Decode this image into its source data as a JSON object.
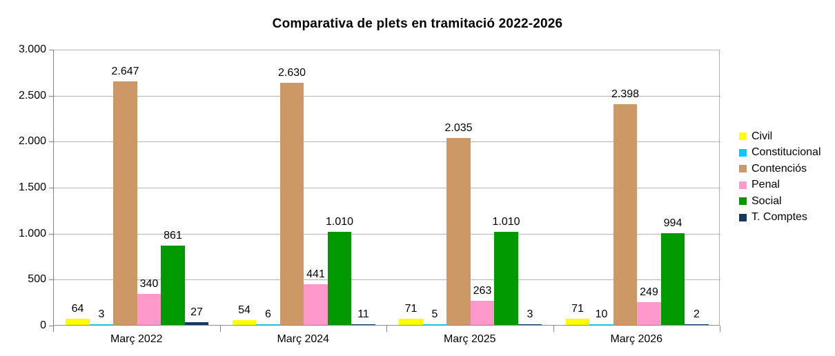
{
  "chart_data": {
    "type": "bar",
    "title": "Comparativa de plets en tramitació 2022-2026",
    "categories": [
      "Març 2022",
      "Març 2024",
      "Març 2025",
      "Març 2026"
    ],
    "series": [
      {
        "name": "Civil",
        "color": "#FFFF00",
        "values": [
          64,
          54,
          71,
          71
        ]
      },
      {
        "name": "Constitucional",
        "color": "#00CCFF",
        "values": [
          3,
          6,
          5,
          10
        ]
      },
      {
        "name": "Contenciós",
        "color": "#CC9966",
        "values": [
          2647,
          2630,
          2035,
          2398
        ]
      },
      {
        "name": "Penal",
        "color": "#FF99CC",
        "values": [
          340,
          441,
          263,
          249
        ]
      },
      {
        "name": "Social",
        "color": "#009A00",
        "values": [
          861,
          1010,
          1010,
          994
        ]
      },
      {
        "name": "T. Comptes",
        "color": "#17375E",
        "values": [
          27,
          11,
          3,
          2
        ]
      }
    ],
    "value_labels": [
      [
        "64",
        "3",
        "2.647",
        "340",
        "861",
        "27"
      ],
      [
        "54",
        "6",
        "2.630",
        "441",
        "1.010",
        "11"
      ],
      [
        "71",
        "5",
        "2.035",
        "263",
        "1.010",
        "3"
      ],
      [
        "71",
        "10",
        "2.398",
        "249",
        "994",
        "2"
      ]
    ],
    "ylim": [
      0,
      3000
    ],
    "y_tick_step": 500,
    "y_tick_labels": [
      "0",
      "500",
      "1.000",
      "1.500",
      "2.000",
      "2.500",
      "3.000"
    ],
    "grid": true,
    "legend_position": "right",
    "number_format": "thousands-dot"
  }
}
